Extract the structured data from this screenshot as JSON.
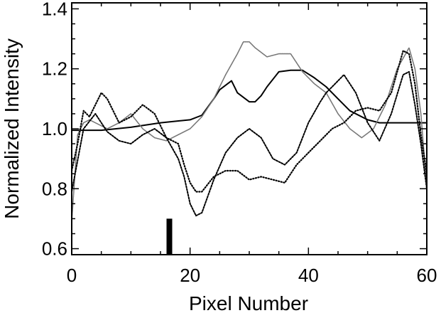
{
  "chart_data": {
    "type": "line",
    "title": "",
    "xlabel": "Pixel Number",
    "ylabel": "Normalized Intensity",
    "xlim": [
      0,
      60
    ],
    "ylim": [
      0.58,
      1.42
    ],
    "xticks": [
      0,
      20,
      40,
      60
    ],
    "xtick_labels": [
      "0",
      "20",
      "40",
      "60"
    ],
    "yticks": [
      0.6,
      0.8,
      1.0,
      1.2,
      1.4
    ],
    "ytick_labels": [
      "0.6",
      "0.8",
      "1.0",
      "1.2",
      "1.4"
    ],
    "grid": false,
    "legend": "none",
    "series": [
      {
        "style": "solid",
        "color": "#000000",
        "x": [
          0,
          5,
          10,
          15,
          20,
          22,
          24,
          25,
          27,
          28,
          30,
          31,
          32,
          33,
          35,
          37,
          39,
          41,
          43,
          45,
          47,
          50,
          52,
          55,
          58,
          60
        ],
        "y": [
          0.995,
          0.995,
          1.005,
          1.02,
          1.03,
          1.045,
          1.1,
          1.13,
          1.16,
          1.12,
          1.09,
          1.09,
          1.11,
          1.14,
          1.19,
          1.195,
          1.195,
          1.17,
          1.14,
          1.1,
          1.06,
          1.03,
          1.02,
          1.02,
          1.02,
          1.02
        ]
      },
      {
        "style": "gray-fine",
        "color": "#777777",
        "x": [
          0,
          1,
          2,
          3,
          4,
          6,
          8,
          10,
          12,
          14,
          16,
          18,
          20,
          22,
          24,
          26,
          28,
          29,
          30,
          31,
          33,
          35,
          37,
          39,
          41,
          43,
          45,
          47,
          49,
          51,
          53,
          55,
          57,
          58,
          59,
          60
        ],
        "y": [
          0.69,
          0.98,
          1.02,
          1.03,
          1.02,
          1.0,
          1.02,
          1.05,
          1.0,
          0.97,
          0.96,
          0.98,
          1.0,
          1.04,
          1.1,
          1.18,
          1.25,
          1.29,
          1.29,
          1.27,
          1.24,
          1.25,
          1.25,
          1.19,
          1.15,
          1.12,
          1.05,
          1.0,
          0.97,
          1.0,
          1.08,
          1.2,
          1.27,
          1.2,
          1.05,
          0.8
        ]
      },
      {
        "style": "dashed",
        "color": "#000000",
        "x": [
          0,
          2,
          4,
          6,
          8,
          10,
          12,
          14,
          16,
          18,
          19,
          20,
          21,
          22,
          24,
          26,
          28,
          30,
          32,
          34,
          36,
          38,
          40,
          42,
          43,
          44,
          46,
          48,
          50,
          52,
          54,
          56,
          57,
          58,
          59,
          60
        ],
        "y": [
          0.79,
          1.0,
          1.05,
          0.99,
          0.96,
          0.95,
          0.98,
          1.0,
          0.97,
          0.9,
          0.84,
          0.75,
          0.71,
          0.72,
          0.83,
          0.92,
          0.97,
          1.0,
          0.97,
          0.9,
          0.88,
          0.92,
          1.02,
          1.09,
          1.12,
          1.14,
          1.18,
          1.12,
          1.02,
          0.96,
          1.05,
          1.18,
          1.19,
          1.08,
          0.95,
          0.8
        ]
      },
      {
        "style": "dotted",
        "color": "#000000",
        "x": [
          0,
          1,
          2,
          3,
          4,
          5,
          6,
          8,
          10,
          12,
          14,
          16,
          18,
          19,
          20,
          21,
          22,
          24,
          26,
          28,
          30,
          32,
          34,
          36,
          38,
          40,
          42,
          44,
          46,
          48,
          50,
          52,
          54,
          56,
          57,
          58,
          59,
          60
        ],
        "y": [
          0.86,
          0.95,
          1.06,
          1.04,
          1.08,
          1.12,
          1.1,
          1.02,
          1.04,
          1.08,
          1.05,
          0.97,
          0.95,
          0.88,
          0.82,
          0.79,
          0.79,
          0.84,
          0.86,
          0.86,
          0.83,
          0.84,
          0.83,
          0.82,
          0.88,
          0.92,
          0.96,
          1.0,
          1.02,
          1.06,
          1.07,
          1.06,
          1.12,
          1.26,
          1.25,
          1.15,
          0.98,
          0.85
        ]
      }
    ],
    "marker_bar": {
      "x": 16.5,
      "y_bottom": 0.58,
      "y_top": 0.7,
      "color": "#000000"
    }
  }
}
